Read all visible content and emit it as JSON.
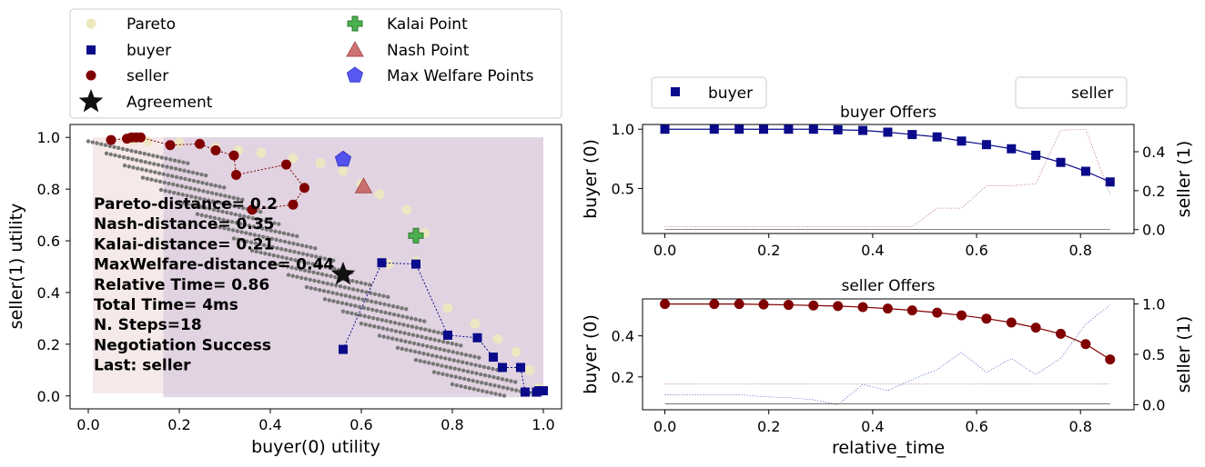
{
  "chart_data": [
    {
      "type": "scatter",
      "xlabel": "buyer(0) utility",
      "ylabel": "seller(1) utility",
      "xlim": [
        -0.04,
        1.04
      ],
      "ylim": [
        -0.05,
        1.05
      ],
      "xticks": [
        "0.0",
        "0.2",
        "0.4",
        "0.6",
        "0.8",
        "1.0"
      ],
      "yticks": [
        "0.0",
        "0.2",
        "0.4",
        "0.6",
        "0.8",
        "1.0"
      ],
      "legend": {
        "placement": "top (outside, above plot)",
        "entries": [
          "Pareto",
          "buyer",
          "seller",
          "Agreement",
          "Kalai Point",
          "Nash Point",
          "Max Welfare Points"
        ]
      },
      "pareto": [
        [
          0.05,
          0.99
        ],
        [
          0.1,
          0.99
        ],
        [
          0.13,
          0.985
        ],
        [
          0.2,
          0.98
        ],
        [
          0.28,
          0.96
        ],
        [
          0.33,
          0.95
        ],
        [
          0.38,
          0.94
        ],
        [
          0.45,
          0.92
        ],
        [
          0.51,
          0.9
        ],
        [
          0.56,
          0.87
        ],
        [
          0.6,
          0.82
        ],
        [
          0.64,
          0.78
        ],
        [
          0.7,
          0.72
        ],
        [
          0.74,
          0.63
        ],
        [
          0.66,
          0.51
        ],
        [
          0.72,
          0.52
        ],
        [
          0.79,
          0.34
        ],
        [
          0.85,
          0.28
        ],
        [
          0.9,
          0.22
        ],
        [
          0.94,
          0.17
        ],
        [
          0.97,
          0.1
        ],
        [
          0.99,
          0.03
        ]
      ],
      "buyer_offers": [
        [
          0.56,
          0.18
        ],
        [
          0.645,
          0.515
        ],
        [
          0.72,
          0.51
        ],
        [
          0.79,
          0.235
        ],
        [
          0.855,
          0.225
        ],
        [
          0.89,
          0.15
        ],
        [
          0.91,
          0.11
        ],
        [
          0.95,
          0.11
        ],
        [
          0.96,
          0.015
        ],
        [
          0.985,
          0.015
        ],
        [
          0.99,
          0.02
        ],
        [
          1.0,
          0.02
        ]
      ],
      "seller_offers": [
        [
          0.05,
          0.99
        ],
        [
          0.085,
          0.995
        ],
        [
          0.095,
          1.0
        ],
        [
          0.105,
          1.0
        ],
        [
          0.115,
          1.0
        ],
        [
          0.18,
          0.97
        ],
        [
          0.245,
          0.975
        ],
        [
          0.28,
          0.95
        ],
        [
          0.32,
          0.93
        ],
        [
          0.325,
          0.855
        ],
        [
          0.435,
          0.895
        ],
        [
          0.475,
          0.805
        ],
        [
          0.45,
          0.74
        ],
        [
          0.36,
          0.72
        ]
      ],
      "agreement": [
        0.56,
        0.47
      ],
      "kalai_point": [
        0.72,
        0.62
      ],
      "nash_point": [
        0.605,
        0.81
      ],
      "max_welfare_point": [
        0.56,
        0.915
      ],
      "annotations": [
        "Pareto-distance= 0.2",
        "Nash-distance= 0.35",
        "Kalai-distance= 0.21",
        "MaxWelfare-distance= 0.44",
        "Relative Time= 0.86",
        "Total Time= 4ms",
        "N. Steps=18",
        "Negotiation Success",
        "Last: seller"
      ],
      "colors": {
        "pareto": "#eee8c0",
        "buyer": "#0a0a8a",
        "seller": "#800000",
        "kalai": "#4caf50",
        "nash": "#c86464",
        "max_welfare": "#3b3bf0",
        "outcomes": "#777777"
      }
    },
    {
      "type": "line",
      "title": "buyer Offers",
      "xlabel": "",
      "ylabel_left": "buyer (0)",
      "ylabel_right": "seller (1)",
      "xlim": [
        -0.043,
        0.903
      ],
      "ylim_left": [
        0.12,
        1.04
      ],
      "ylim_right": [
        -0.02,
        0.54
      ],
      "xticks": [
        "0.0",
        "0.2",
        "0.4",
        "0.6",
        "0.8"
      ],
      "yticks_left": [
        "0.5",
        "1.0"
      ],
      "yticks_right": [
        "0.0",
        "0.2",
        "0.4"
      ],
      "legend": {
        "left": "buyer",
        "right": "seller"
      },
      "x": [
        0,
        0.095,
        0.143,
        0.19,
        0.238,
        0.286,
        0.333,
        0.381,
        0.429,
        0.476,
        0.524,
        0.571,
        0.619,
        0.667,
        0.714,
        0.762,
        0.81,
        0.857
      ],
      "series": [
        {
          "name": "buyer",
          "axis": "left",
          "values": [
            1.0,
            1.0,
            1.0,
            1.0,
            1.0,
            1.0,
            0.995,
            0.99,
            0.975,
            0.955,
            0.935,
            0.9,
            0.87,
            0.835,
            0.78,
            0.72,
            0.645,
            0.555
          ]
        },
        {
          "axis": "right",
          "values": [
            0.015,
            0.015,
            0.015,
            0.015,
            0.015,
            0.015,
            0.015,
            0.015,
            0.015,
            0.015,
            0.11,
            0.11,
            0.225,
            0.225,
            0.235,
            0.51,
            0.515,
            0.18
          ]
        },
        {
          "axis": "left",
          "values": [
            0.155,
            0.155,
            0.155,
            0.155,
            0.155,
            0.155,
            0.155,
            0.155,
            0.155,
            0.155,
            0.155,
            0.155,
            0.155,
            0.155,
            0.155,
            0.155,
            0.155,
            0.155
          ]
        }
      ]
    },
    {
      "type": "line",
      "title": "seller Offers",
      "xlabel": "relative_time",
      "ylabel_left": "buyer (0)",
      "ylabel_right": "seller (1)",
      "xlim": [
        -0.043,
        0.903
      ],
      "ylim_left": [
        0.04,
        0.58
      ],
      "ylim_right": [
        -0.05,
        1.05
      ],
      "xticks": [
        "0.0",
        "0.2",
        "0.4",
        "0.6",
        "0.8"
      ],
      "yticks_left": [
        "0.2",
        "0.4"
      ],
      "yticks_right": [
        "0.0",
        "0.5",
        "1.0"
      ],
      "x": [
        0,
        0.095,
        0.143,
        0.19,
        0.238,
        0.286,
        0.333,
        0.381,
        0.429,
        0.476,
        0.524,
        0.571,
        0.619,
        0.667,
        0.714,
        0.762,
        0.81,
        0.857
      ],
      "series": [
        {
          "name": "seller",
          "axis": "left",
          "values": [
            0.555,
            0.555,
            0.555,
            0.553,
            0.551,
            0.548,
            0.545,
            0.54,
            0.533,
            0.524,
            0.513,
            0.5,
            0.484,
            0.465,
            0.44,
            0.41,
            0.36,
            0.285
          ]
        },
        {
          "axis": "right",
          "values": [
            0.1,
            0.1,
            0.1,
            0.08,
            0.07,
            0.05,
            0.0,
            0.2,
            0.14,
            0.25,
            0.35,
            0.52,
            0.32,
            0.46,
            0.3,
            0.46,
            0.8,
            0.99
          ]
        },
        {
          "axis": "right",
          "values": [
            0.01,
            0.01,
            0.01,
            0.01,
            0.01,
            0.01,
            0.01,
            0.01,
            0.01,
            0.01,
            0.01,
            0.01,
            0.01,
            0.01,
            0.01,
            0.01,
            0.01,
            0.01
          ]
        },
        {
          "axis": "left",
          "values": [
            0.165,
            0.165,
            0.165,
            0.165,
            0.165,
            0.165,
            0.165,
            0.165,
            0.165,
            0.165,
            0.165,
            0.165,
            0.165,
            0.165,
            0.165,
            0.165,
            0.165,
            0.165
          ]
        }
      ]
    }
  ]
}
